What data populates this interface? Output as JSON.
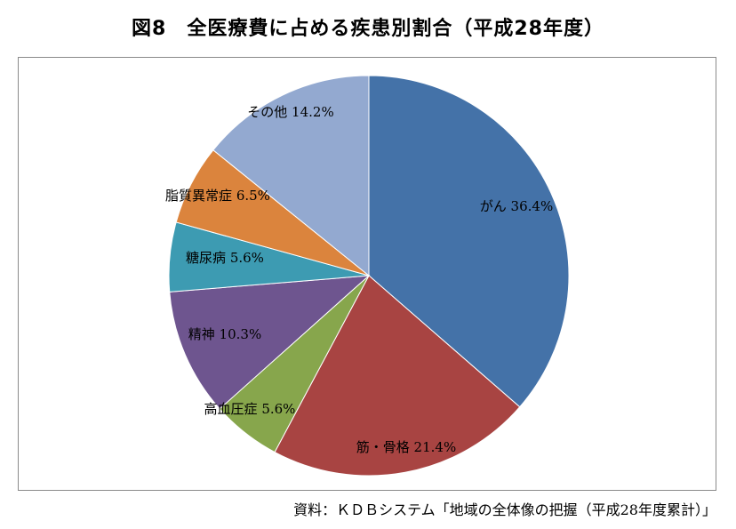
{
  "title": "図8　全医療費に占める疾患別割合（平成28年度）",
  "source": "資料：ＫＤＢシステム「地域の全体像の把握（平成28年度累計）」",
  "chart_data": {
    "type": "pie",
    "start": "top",
    "direction": "clockwise",
    "slices": [
      {
        "label": "がん",
        "value": 36.4,
        "text": "がん 36.4%",
        "color": "#4472a8"
      },
      {
        "label": "筋・骨格",
        "value": 21.4,
        "text": "筋・骨格 21.4%",
        "color": "#a84442"
      },
      {
        "label": "高血圧症",
        "value": 5.6,
        "text": "高血圧症 5.6%",
        "color": "#87a64c"
      },
      {
        "label": "精神",
        "value": 10.3,
        "text": "精神 10.3%",
        "color": "#6e558f"
      },
      {
        "label": "糖尿病",
        "value": 5.6,
        "text": "糖尿病 5.6%",
        "color": "#3d9bb2"
      },
      {
        "label": "脂質異常症",
        "value": 6.5,
        "text": "脂質異常症 6.5%",
        "color": "#db843d"
      },
      {
        "label": "その他",
        "value": 14.2,
        "text": "その他 14.2%",
        "color": "#93a9d0"
      }
    ]
  }
}
